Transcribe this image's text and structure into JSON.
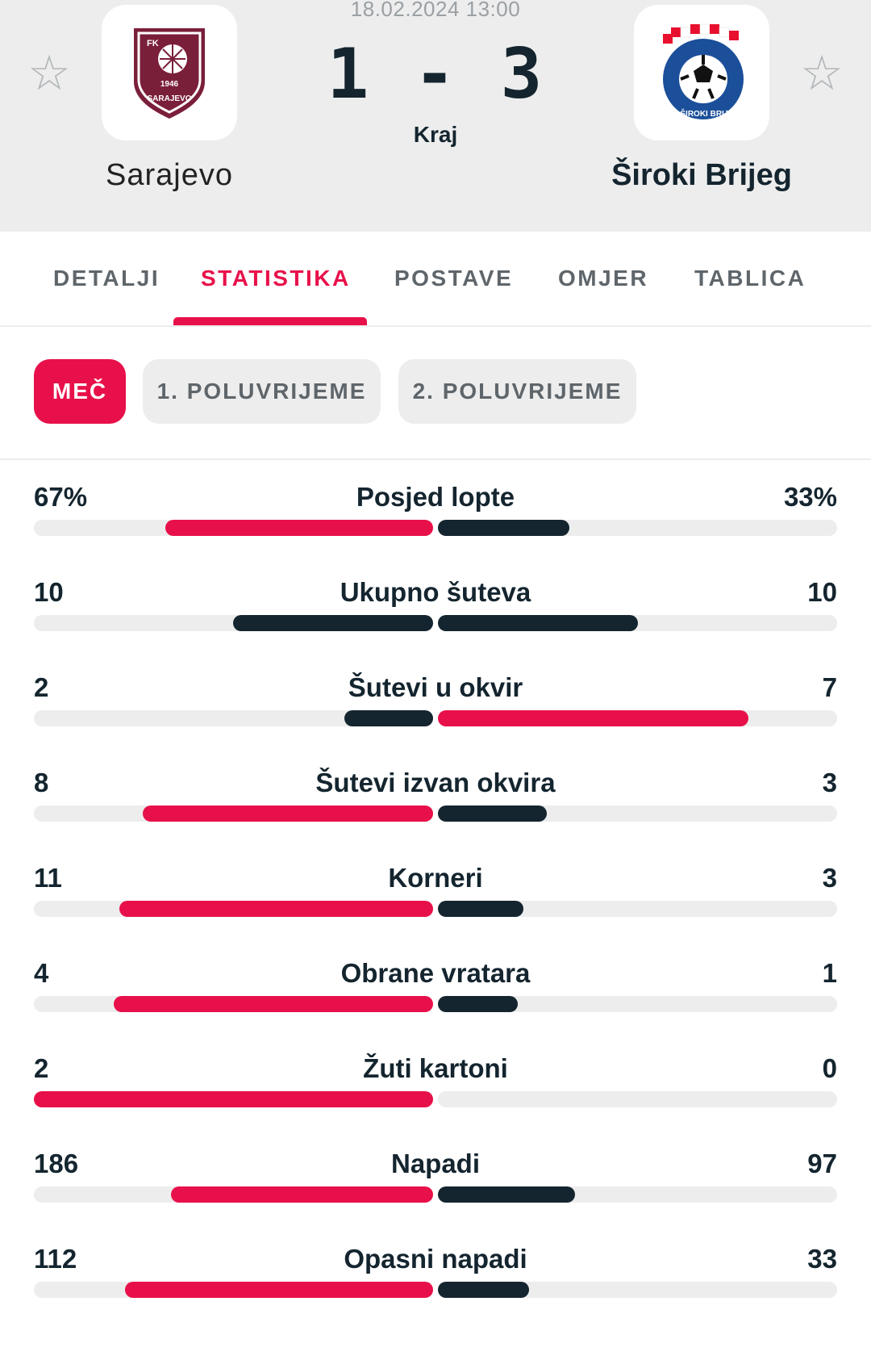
{
  "header": {
    "date": "18.02.2024 13:00",
    "score": "1 - 3",
    "status": "Kraj",
    "home": {
      "name": "Sarajevo",
      "crest_text_top": "FK",
      "crest_text": "SARAJEVO",
      "crest_year": "1946"
    },
    "away": {
      "name": "Široki Brijeg",
      "crest_text": "NK ŠIROKI BRIJEG"
    }
  },
  "tabs": [
    {
      "label": "DETALJI",
      "active": false
    },
    {
      "label": "STATISTIKA",
      "active": true
    },
    {
      "label": "POSTAVE",
      "active": false
    },
    {
      "label": "OMJER",
      "active": false
    },
    {
      "label": "TABLICA",
      "active": false
    }
  ],
  "periods": [
    {
      "label": "MEČ",
      "active": true
    },
    {
      "label": "1. POLUVRIJEME",
      "active": false
    },
    {
      "label": "2. POLUVRIJEME",
      "active": false
    }
  ],
  "colors": {
    "accent": "#e8104a",
    "dark": "#14252f",
    "track": "#ededed"
  },
  "stats": [
    {
      "label": "Posjed lopte",
      "home": "67%",
      "away": "33%",
      "home_fill": 0.67,
      "away_fill": 0.33,
      "home_color": "red",
      "away_color": "dark"
    },
    {
      "label": "Ukupno šuteva",
      "home": "10",
      "away": "10",
      "home_fill": 0.5,
      "away_fill": 0.5,
      "home_color": "dark",
      "away_color": "dark"
    },
    {
      "label": "Šutevi u okvir",
      "home": "2",
      "away": "7",
      "home_fill": 0.222,
      "away_fill": 0.778,
      "home_color": "dark",
      "away_color": "red"
    },
    {
      "label": "Šutevi izvan okvira",
      "home": "8",
      "away": "3",
      "home_fill": 0.727,
      "away_fill": 0.273,
      "home_color": "red",
      "away_color": "dark"
    },
    {
      "label": "Korneri",
      "home": "11",
      "away": "3",
      "home_fill": 0.786,
      "away_fill": 0.214,
      "home_color": "red",
      "away_color": "dark"
    },
    {
      "label": "Obrane vratara",
      "home": "4",
      "away": "1",
      "home_fill": 0.8,
      "away_fill": 0.2,
      "home_color": "red",
      "away_color": "dark"
    },
    {
      "label": "Žuti kartoni",
      "home": "2",
      "away": "0",
      "home_fill": 1.0,
      "away_fill": 0.0,
      "home_color": "red",
      "away_color": "dark"
    },
    {
      "label": "Napadi",
      "home": "186",
      "away": "97",
      "home_fill": 0.657,
      "away_fill": 0.343,
      "home_color": "red",
      "away_color": "dark"
    },
    {
      "label": "Opasni napadi",
      "home": "112",
      "away": "33",
      "home_fill": 0.772,
      "away_fill": 0.228,
      "home_color": "red",
      "away_color": "dark"
    }
  ]
}
